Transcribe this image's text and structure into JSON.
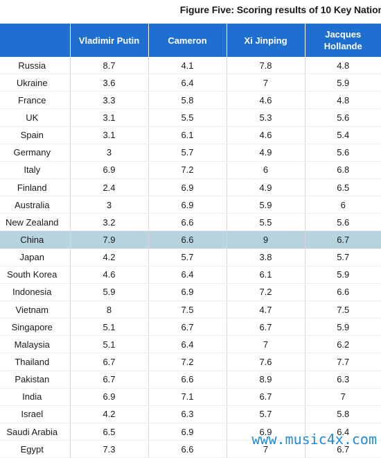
{
  "title": "Figure Five: Scoring results of 10 Key Nation",
  "columns": [
    "",
    "Vladimir Putin",
    "Cameron",
    "Xi Jinping",
    "Jacques Hollande"
  ],
  "rows": [
    {
      "country": "Russia",
      "values": [
        "8.7",
        "4.1",
        "7.8",
        "4.8"
      ]
    },
    {
      "country": "Ukraine",
      "values": [
        "3.6",
        "6.4",
        "7",
        "5.9"
      ]
    },
    {
      "country": "France",
      "values": [
        "3.3",
        "5.8",
        "4.6",
        "4.8"
      ]
    },
    {
      "country": "UK",
      "values": [
        "3.1",
        "5.5",
        "5.3",
        "5.6"
      ]
    },
    {
      "country": "Spain",
      "values": [
        "3.1",
        "6.1",
        "4.6",
        "5.4"
      ]
    },
    {
      "country": "Germany",
      "values": [
        "3",
        "5.7",
        "4.9",
        "5.6"
      ]
    },
    {
      "country": "Italy",
      "values": [
        "6.9",
        "7.2",
        "6",
        "6.8"
      ]
    },
    {
      "country": "Finland",
      "values": [
        "2.4",
        "6.9",
        "4.9",
        "6.5"
      ]
    },
    {
      "country": "Australia",
      "values": [
        "3",
        "6.9",
        "5.9",
        "6"
      ]
    },
    {
      "country": "New Zealand",
      "values": [
        "3.2",
        "6.6",
        "5.5",
        "5.6"
      ]
    },
    {
      "country": "China",
      "values": [
        "7.9",
        "6.6",
        "9",
        "6.7"
      ],
      "highlight": true
    },
    {
      "country": "Japan",
      "values": [
        "4.2",
        "5.7",
        "3.8",
        "5.7"
      ]
    },
    {
      "country": "South Korea",
      "values": [
        "4.6",
        "6.4",
        "6.1",
        "5.9"
      ]
    },
    {
      "country": "Indonesia",
      "values": [
        "5.9",
        "6.9",
        "7.2",
        "6.6"
      ]
    },
    {
      "country": "Vietnam",
      "values": [
        "8",
        "7.5",
        "4.7",
        "7.5"
      ]
    },
    {
      "country": "Singapore",
      "values": [
        "5.1",
        "6.7",
        "6.7",
        "5.9"
      ]
    },
    {
      "country": "Malaysia",
      "values": [
        "5.1",
        "6.4",
        "7",
        "6.2"
      ]
    },
    {
      "country": "Thailand",
      "values": [
        "6.7",
        "7.2",
        "7.6",
        "7.7"
      ]
    },
    {
      "country": "Pakistan",
      "values": [
        "6.7",
        "6.6",
        "8.9",
        "6.3"
      ]
    },
    {
      "country": "India",
      "values": [
        "6.9",
        "7.1",
        "6.7",
        "7"
      ]
    },
    {
      "country": "Israel",
      "values": [
        "4.2",
        "6.3",
        "5.7",
        "5.8"
      ]
    },
    {
      "country": "Saudi Arabia",
      "values": [
        "6.5",
        "6.9",
        "6.9",
        "6.4"
      ]
    },
    {
      "country": "Egypt",
      "values": [
        "7.3",
        "6.6",
        "7",
        "6.7"
      ]
    }
  ],
  "watermark": "www.music4x.com",
  "colors": {
    "header_bg": "#1e6fcf",
    "highlight_row": "#b7d3dd",
    "watermark": "#1e8ad8"
  }
}
